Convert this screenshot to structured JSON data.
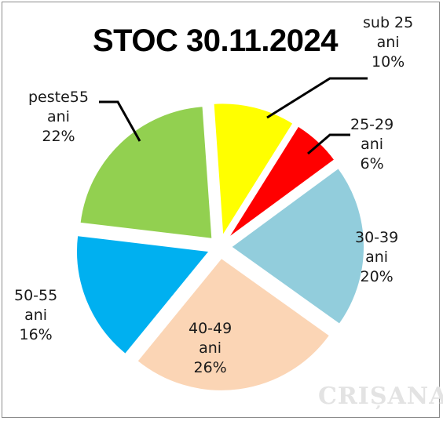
{
  "chart_data": {
    "type": "pie",
    "title": "STOC 30.11.2024",
    "slices": [
      {
        "label": [
          "sub 25",
          "ani",
          "10%"
        ],
        "value": 10,
        "color": "#ffff00"
      },
      {
        "label": [
          "25-29",
          "ani",
          "6%"
        ],
        "value": 6,
        "color": "#ff0000"
      },
      {
        "label": [
          "30-39",
          "ani",
          "20%"
        ],
        "value": 20,
        "color": "#92cddc"
      },
      {
        "label": [
          "40-49",
          "ani",
          "26%"
        ],
        "value": 26,
        "color": "#fbd5b5"
      },
      {
        "label": [
          "50-55",
          "ani",
          "16%"
        ],
        "value": 16,
        "color": "#00b0f0"
      },
      {
        "label": [
          "peste55",
          "ani",
          "22%"
        ],
        "value": 22,
        "color": "#92d050"
      }
    ],
    "legend": "none"
  },
  "watermark": "CRIȘANA"
}
